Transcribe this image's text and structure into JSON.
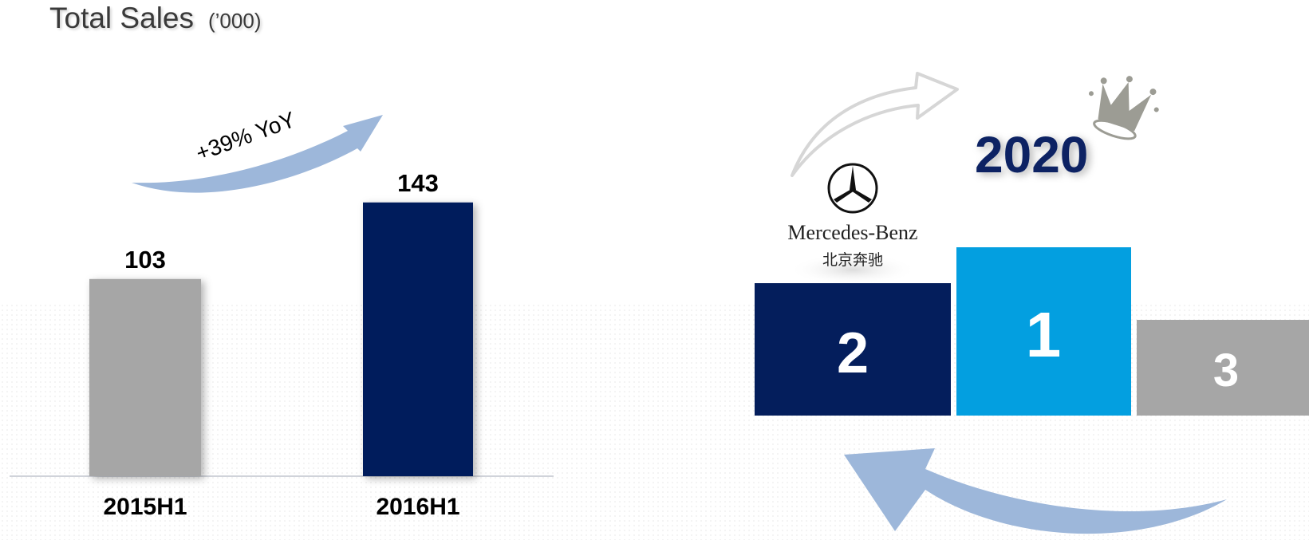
{
  "title": {
    "main": "Total Sales",
    "unit": "(’000)"
  },
  "chart_data": {
    "type": "bar",
    "title": "Total Sales (’000)",
    "categories": [
      "2015H1",
      "2016H1"
    ],
    "values": [
      103,
      143
    ],
    "data_labels": [
      "103",
      "143"
    ],
    "ylim": [
      0,
      150
    ],
    "grid": false,
    "colors": [
      "#a6a6a6",
      "#041e5c"
    ],
    "annotation": "+39% YoY"
  },
  "podium": {
    "year": "2020",
    "brand_name": "Mercedes-Benz",
    "brand_chinese": "北京奔驰",
    "ranks": [
      "2",
      "1",
      "3"
    ],
    "colors": {
      "second": "#041e5c",
      "first": "#039fe0",
      "third": "#a6a6a6",
      "arrow": "#9db7da"
    },
    "icons": [
      "mercedes-star-icon",
      "crown-icon",
      "growth-arrow-icon",
      "return-arrow-icon"
    ]
  }
}
